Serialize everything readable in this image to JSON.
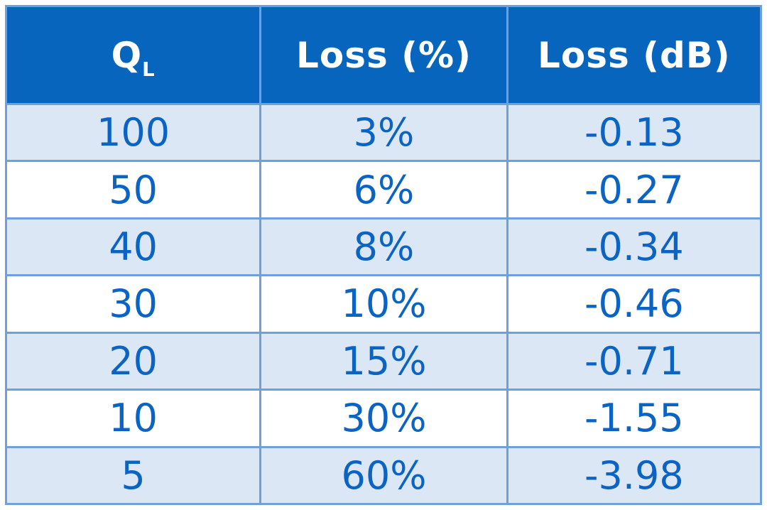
{
  "colors": {
    "header_bg": "#0765bd",
    "header_text": "#ffffff",
    "row_alt_bg": "#dce7f5",
    "row_bg": "#ffffff",
    "grid_border": "#6fa0db",
    "cell_text": "#0b64c4",
    "page_bg": "#ffffff"
  },
  "header": {
    "ql_main": "Q",
    "ql_sub": "L",
    "loss_pct": "Loss (%)",
    "loss_db": "Loss (dB)"
  },
  "chart_data": {
    "type": "table",
    "columns": [
      "QL",
      "Loss (%)",
      "Loss (dB)"
    ],
    "rows": [
      [
        "100",
        "3%",
        "-0.13"
      ],
      [
        "50",
        "6%",
        "-0.27"
      ],
      [
        "40",
        "8%",
        "-0.34"
      ],
      [
        "30",
        "10%",
        "-0.46"
      ],
      [
        "20",
        "15%",
        "-0.71"
      ],
      [
        "10",
        "30%",
        "-1.55"
      ],
      [
        "5",
        "60%",
        "-3.98"
      ]
    ]
  }
}
